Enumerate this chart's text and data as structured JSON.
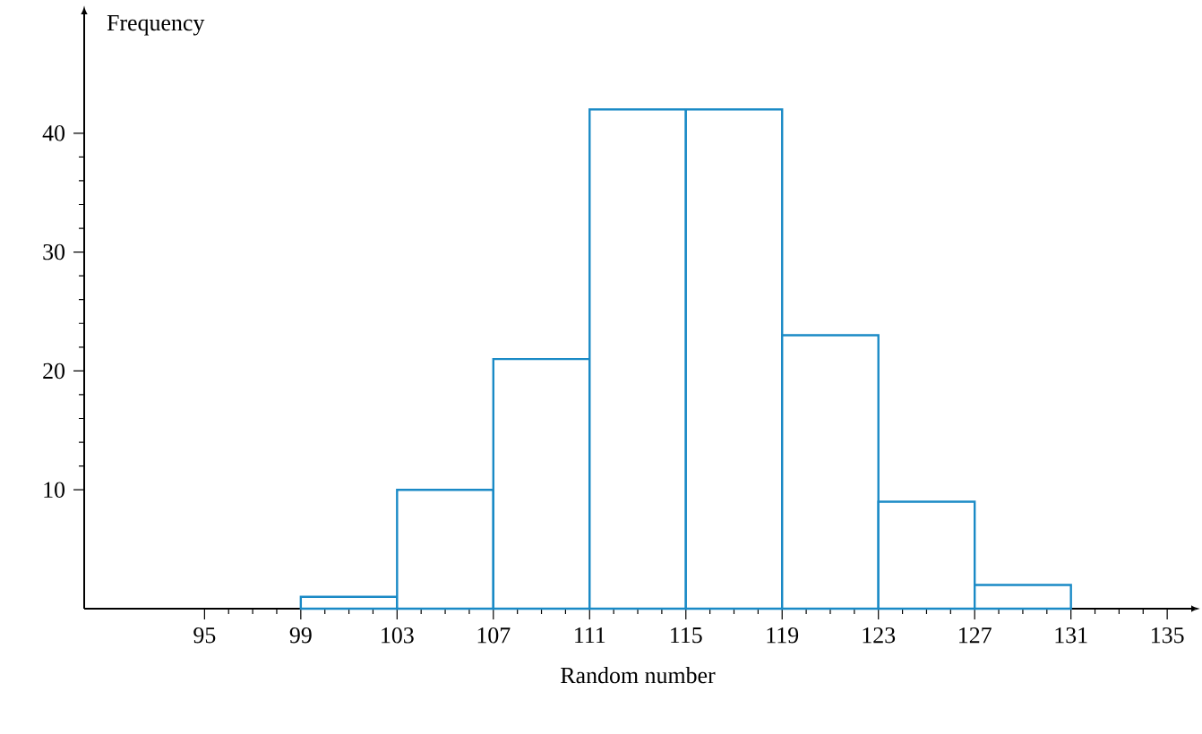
{
  "chart_data": {
    "type": "histogram",
    "xlabel": "Random number",
    "ylabel": "Frequency",
    "bins": [
      99,
      103,
      107,
      111,
      115,
      119,
      123,
      127,
      131
    ],
    "values": [
      1,
      10,
      21,
      42,
      42,
      23,
      9,
      2
    ],
    "color": "#1a8ac6",
    "xlim": [
      90,
      136
    ],
    "ylim": [
      0,
      50
    ],
    "xticks": [
      95,
      99,
      103,
      107,
      111,
      115,
      119,
      123,
      127,
      131,
      135
    ],
    "yticks": [
      10,
      20,
      30,
      40
    ],
    "grid": false
  }
}
